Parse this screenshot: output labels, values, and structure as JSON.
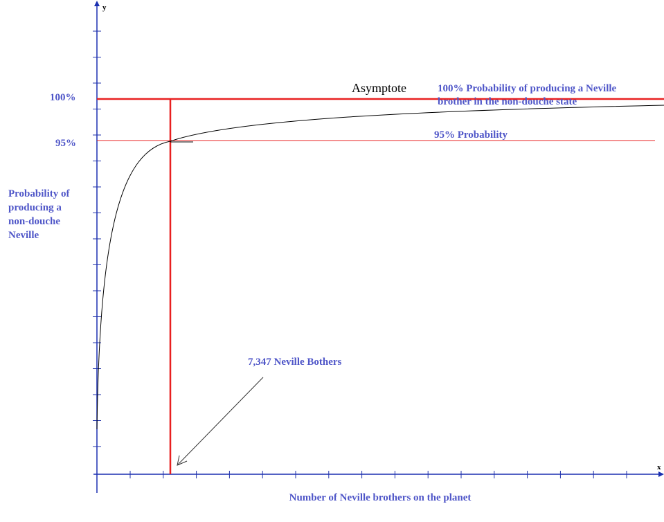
{
  "axes": {
    "y": "y",
    "x": "x"
  },
  "y_levels": [
    "100%",
    "95%"
  ],
  "y_axis_title": [
    "Probability of",
    "producing a",
    "non-douche",
    "Neville"
  ],
  "asymptote": "Asymptote",
  "upper_note": [
    "100% Probability of producing a Neville",
    "brother in the non-douche state"
  ],
  "lower_note": "95% Probability",
  "pointer_note": "7,347 Neville Bothers",
  "x_axis_title": "Number of Neville brothers on the planet"
}
